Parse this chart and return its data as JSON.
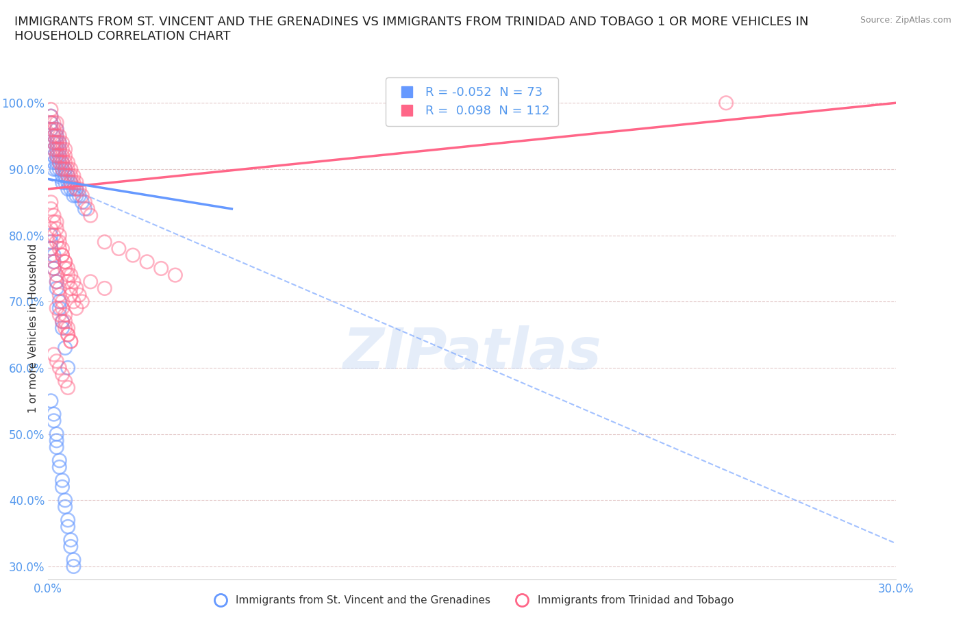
{
  "title": "IMMIGRANTS FROM ST. VINCENT AND THE GRENADINES VS IMMIGRANTS FROM TRINIDAD AND TOBAGO 1 OR MORE VEHICLES IN\nHOUSEHOLD CORRELATION CHART",
  "source": "Source: ZipAtlas.com",
  "ylabel": "1 or more Vehicles in Household",
  "xlim": [
    0.0,
    0.3
  ],
  "ylim": [
    0.28,
    1.04
  ],
  "xticks": [
    0.0,
    0.05,
    0.1,
    0.15,
    0.2,
    0.25,
    0.3
  ],
  "xticklabels": [
    "0.0%",
    "",
    "",
    "",
    "",
    "",
    "30.0%"
  ],
  "yticks": [
    0.3,
    0.4,
    0.5,
    0.6,
    0.7,
    0.8,
    0.9,
    1.0
  ],
  "yticklabels": [
    "30.0%",
    "40.0%",
    "50.0%",
    "60.0%",
    "70.0%",
    "80.0%",
    "90.0%",
    "100.0%"
  ],
  "blue_R": -0.052,
  "blue_N": 73,
  "pink_R": 0.098,
  "pink_N": 112,
  "blue_color": "#6699ff",
  "pink_color": "#ff6688",
  "blue_label": "Immigrants from St. Vincent and the Grenadines",
  "pink_label": "Immigrants from Trinidad and Tobago",
  "watermark": "ZIPatlas",
  "blue_scatter_x": [
    0.001,
    0.001,
    0.001,
    0.002,
    0.002,
    0.002,
    0.002,
    0.002,
    0.002,
    0.003,
    0.003,
    0.003,
    0.003,
    0.003,
    0.003,
    0.003,
    0.004,
    0.004,
    0.004,
    0.004,
    0.004,
    0.005,
    0.005,
    0.005,
    0.005,
    0.006,
    0.006,
    0.006,
    0.007,
    0.007,
    0.007,
    0.008,
    0.008,
    0.009,
    0.009,
    0.01,
    0.01,
    0.011,
    0.012,
    0.013,
    0.001,
    0.001,
    0.001,
    0.002,
    0.002,
    0.002,
    0.003,
    0.003,
    0.004,
    0.004,
    0.005,
    0.005,
    0.006,
    0.007,
    0.001,
    0.002,
    0.002,
    0.003,
    0.003,
    0.003,
    0.004,
    0.004,
    0.005,
    0.005,
    0.006,
    0.006,
    0.007,
    0.007,
    0.008,
    0.008,
    0.009,
    0.009
  ],
  "blue_scatter_y": [
    0.98,
    0.97,
    0.96,
    0.95,
    0.94,
    0.93,
    0.92,
    0.91,
    0.9,
    0.96,
    0.95,
    0.94,
    0.93,
    0.92,
    0.91,
    0.9,
    0.94,
    0.93,
    0.92,
    0.91,
    0.9,
    0.91,
    0.9,
    0.89,
    0.88,
    0.9,
    0.89,
    0.88,
    0.89,
    0.88,
    0.87,
    0.88,
    0.87,
    0.87,
    0.86,
    0.87,
    0.86,
    0.86,
    0.85,
    0.84,
    0.8,
    0.79,
    0.78,
    0.77,
    0.76,
    0.75,
    0.73,
    0.72,
    0.7,
    0.69,
    0.67,
    0.66,
    0.63,
    0.6,
    0.55,
    0.53,
    0.52,
    0.5,
    0.49,
    0.48,
    0.46,
    0.45,
    0.43,
    0.42,
    0.4,
    0.39,
    0.37,
    0.36,
    0.34,
    0.33,
    0.31,
    0.3
  ],
  "pink_scatter_x": [
    0.001,
    0.001,
    0.001,
    0.001,
    0.002,
    0.002,
    0.002,
    0.002,
    0.002,
    0.003,
    0.003,
    0.003,
    0.003,
    0.003,
    0.003,
    0.004,
    0.004,
    0.004,
    0.004,
    0.004,
    0.005,
    0.005,
    0.005,
    0.005,
    0.005,
    0.006,
    0.006,
    0.006,
    0.006,
    0.007,
    0.007,
    0.007,
    0.008,
    0.008,
    0.008,
    0.009,
    0.009,
    0.01,
    0.01,
    0.011,
    0.012,
    0.013,
    0.014,
    0.015,
    0.001,
    0.001,
    0.002,
    0.002,
    0.003,
    0.003,
    0.004,
    0.004,
    0.005,
    0.005,
    0.006,
    0.006,
    0.007,
    0.007,
    0.008,
    0.008,
    0.009,
    0.01,
    0.001,
    0.001,
    0.002,
    0.002,
    0.003,
    0.003,
    0.004,
    0.004,
    0.005,
    0.005,
    0.006,
    0.006,
    0.007,
    0.007,
    0.008,
    0.001,
    0.002,
    0.003,
    0.004,
    0.005,
    0.006,
    0.007,
    0.008,
    0.009,
    0.01,
    0.011,
    0.012,
    0.003,
    0.004,
    0.005,
    0.006,
    0.007,
    0.008,
    0.002,
    0.003,
    0.004,
    0.005,
    0.006,
    0.007,
    0.02,
    0.025,
    0.03,
    0.035,
    0.04,
    0.045,
    0.015,
    0.02,
    0.24
  ],
  "pink_scatter_y": [
    0.99,
    0.98,
    0.97,
    0.96,
    0.97,
    0.96,
    0.95,
    0.94,
    0.93,
    0.97,
    0.96,
    0.95,
    0.94,
    0.93,
    0.92,
    0.95,
    0.94,
    0.93,
    0.92,
    0.91,
    0.94,
    0.93,
    0.92,
    0.91,
    0.9,
    0.93,
    0.92,
    0.91,
    0.9,
    0.91,
    0.9,
    0.89,
    0.9,
    0.89,
    0.88,
    0.89,
    0.88,
    0.88,
    0.87,
    0.87,
    0.86,
    0.85,
    0.84,
    0.83,
    0.85,
    0.84,
    0.83,
    0.82,
    0.82,
    0.81,
    0.8,
    0.79,
    0.78,
    0.77,
    0.76,
    0.75,
    0.74,
    0.73,
    0.72,
    0.71,
    0.7,
    0.69,
    0.78,
    0.77,
    0.76,
    0.75,
    0.74,
    0.73,
    0.72,
    0.71,
    0.7,
    0.69,
    0.68,
    0.67,
    0.66,
    0.65,
    0.64,
    0.81,
    0.8,
    0.79,
    0.78,
    0.77,
    0.76,
    0.75,
    0.74,
    0.73,
    0.72,
    0.71,
    0.7,
    0.69,
    0.68,
    0.67,
    0.66,
    0.65,
    0.64,
    0.62,
    0.61,
    0.6,
    0.59,
    0.58,
    0.57,
    0.79,
    0.78,
    0.77,
    0.76,
    0.75,
    0.74,
    0.73,
    0.72,
    1.0
  ]
}
